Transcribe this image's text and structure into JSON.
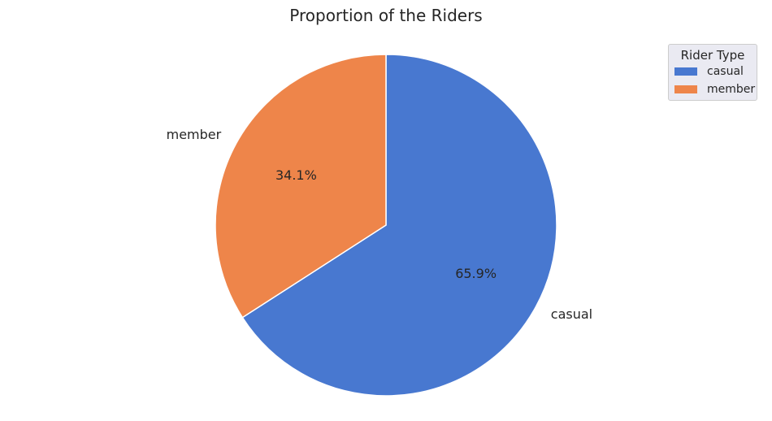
{
  "chart_data": {
    "type": "pie",
    "title": "Proportion of the Riders",
    "labels": [
      "casual",
      "member"
    ],
    "values": [
      65.9,
      34.1
    ],
    "value_labels": [
      "65.9%",
      "34.1%"
    ],
    "colors": [
      "#4878d0",
      "#ee854a"
    ],
    "start_angle": 90,
    "direction": "clockwise",
    "legend": {
      "title": "Rider Type",
      "entries": [
        "casual",
        "member"
      ],
      "position": "top-right"
    }
  }
}
